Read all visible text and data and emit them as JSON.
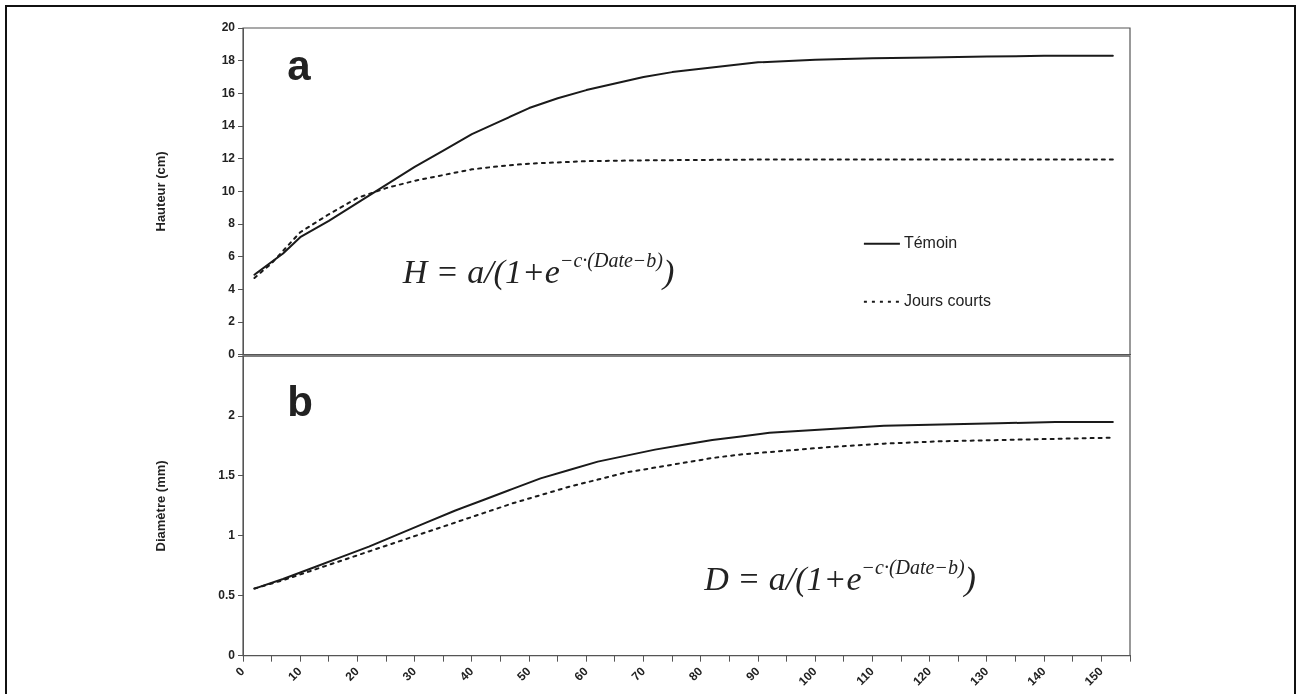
{
  "chart_data": [
    {
      "type": "line",
      "ylabel": "Hauteur (cm)",
      "xlim": [
        0,
        155
      ],
      "ylim": [
        0,
        20
      ],
      "yticks": [
        0,
        2,
        4,
        6,
        8,
        10,
        12,
        14,
        16,
        18,
        20
      ],
      "tick_labels": "y",
      "grid": false,
      "legend": "bottom right",
      "marker": "none",
      "annotations": [
        "a",
        "H = a/(1+e$^{−c·(Date−b)}$)"
      ],
      "series": [
        {
          "name": "Témoin",
          "color": "#1a1a1a",
          "line_style": "solid",
          "x": [
            2,
            7,
            10,
            15,
            20,
            25,
            30,
            35,
            40,
            45,
            50,
            55,
            60,
            65,
            70,
            75,
            80,
            85,
            90,
            100,
            110,
            120,
            130,
            140,
            152
          ],
          "values": [
            4.9,
            6.2,
            7.2,
            8.2,
            9.3,
            10.4,
            11.5,
            12.5,
            13.5,
            14.3,
            15.1,
            15.7,
            16.2,
            16.6,
            17.0,
            17.3,
            17.5,
            17.7,
            17.9,
            18.05,
            18.15,
            18.2,
            18.25,
            18.3,
            18.3
          ]
        },
        {
          "name": "Jours courts",
          "color": "#1a1a1a",
          "line_style": "dotted",
          "x": [
            2,
            5,
            10,
            15,
            20,
            25,
            30,
            35,
            40,
            45,
            50,
            60,
            70,
            90,
            120,
            152
          ],
          "values": [
            4.7,
            5.6,
            7.5,
            8.6,
            9.6,
            10.2,
            10.65,
            11.0,
            11.35,
            11.55,
            11.7,
            11.85,
            11.9,
            11.95,
            11.95,
            11.95
          ]
        }
      ]
    },
    {
      "type": "line",
      "ylabel": "Diamètre (mm)",
      "xlim": [
        0,
        155
      ],
      "xticks": [
        0,
        {
          "value": 5,
          "label": null
        },
        10,
        {
          "value": 15,
          "label": null
        },
        20,
        {
          "value": 25,
          "label": null
        },
        30,
        {
          "value": 35,
          "label": null
        },
        40,
        {
          "value": 45,
          "label": null
        },
        50,
        {
          "value": 55,
          "label": null
        },
        60,
        {
          "value": 65,
          "label": null
        },
        70,
        {
          "value": 75,
          "label": null
        },
        80,
        {
          "value": 85,
          "label": null
        },
        90,
        {
          "value": 95,
          "label": null
        },
        100,
        {
          "value": 105,
          "label": null
        },
        110,
        {
          "value": 115,
          "label": null
        },
        120,
        {
          "value": 125,
          "label": null
        },
        130,
        {
          "value": 135,
          "label": null
        },
        140,
        {
          "value": 145,
          "label": null
        },
        150,
        {
          "value": 155,
          "label": null
        }
      ],
      "ylim": [
        0,
        2.5
      ],
      "yticks": [
        0,
        0.5,
        1,
        1.5,
        2,
        {
          "value": 2.5,
          "label": null
        }
      ],
      "grid": false,
      "marker": "none",
      "annotations": [
        "b",
        "D = a/(1+e$^{−c·(Date−b)}$)"
      ],
      "series": [
        {
          "color": "#1a1a1a",
          "line_style": "solid",
          "x": [
            2,
            7,
            12,
            17,
            22,
            27,
            32,
            37,
            42,
            47,
            52,
            57,
            62,
            67,
            72,
            77,
            82,
            87,
            92,
            102,
            112,
            122,
            132,
            142,
            152
          ],
          "values": [
            0.56,
            0.64,
            0.73,
            0.82,
            0.91,
            1.01,
            1.11,
            1.21,
            1.3,
            1.39,
            1.48,
            1.55,
            1.62,
            1.67,
            1.72,
            1.76,
            1.8,
            1.83,
            1.86,
            1.89,
            1.92,
            1.93,
            1.94,
            1.95,
            1.95
          ]
        },
        {
          "color": "#1a1a1a",
          "line_style": "dotted",
          "x": [
            2,
            7,
            12,
            17,
            22,
            27,
            32,
            37,
            42,
            47,
            52,
            57,
            62,
            67,
            72,
            77,
            82,
            87,
            92,
            102,
            112,
            122,
            132,
            142,
            152
          ],
          "values": [
            0.56,
            0.63,
            0.71,
            0.79,
            0.87,
            0.95,
            1.03,
            1.11,
            1.19,
            1.27,
            1.34,
            1.41,
            1.47,
            1.53,
            1.57,
            1.61,
            1.65,
            1.68,
            1.7,
            1.74,
            1.77,
            1.79,
            1.8,
            1.81,
            1.82
          ]
        }
      ]
    }
  ]
}
